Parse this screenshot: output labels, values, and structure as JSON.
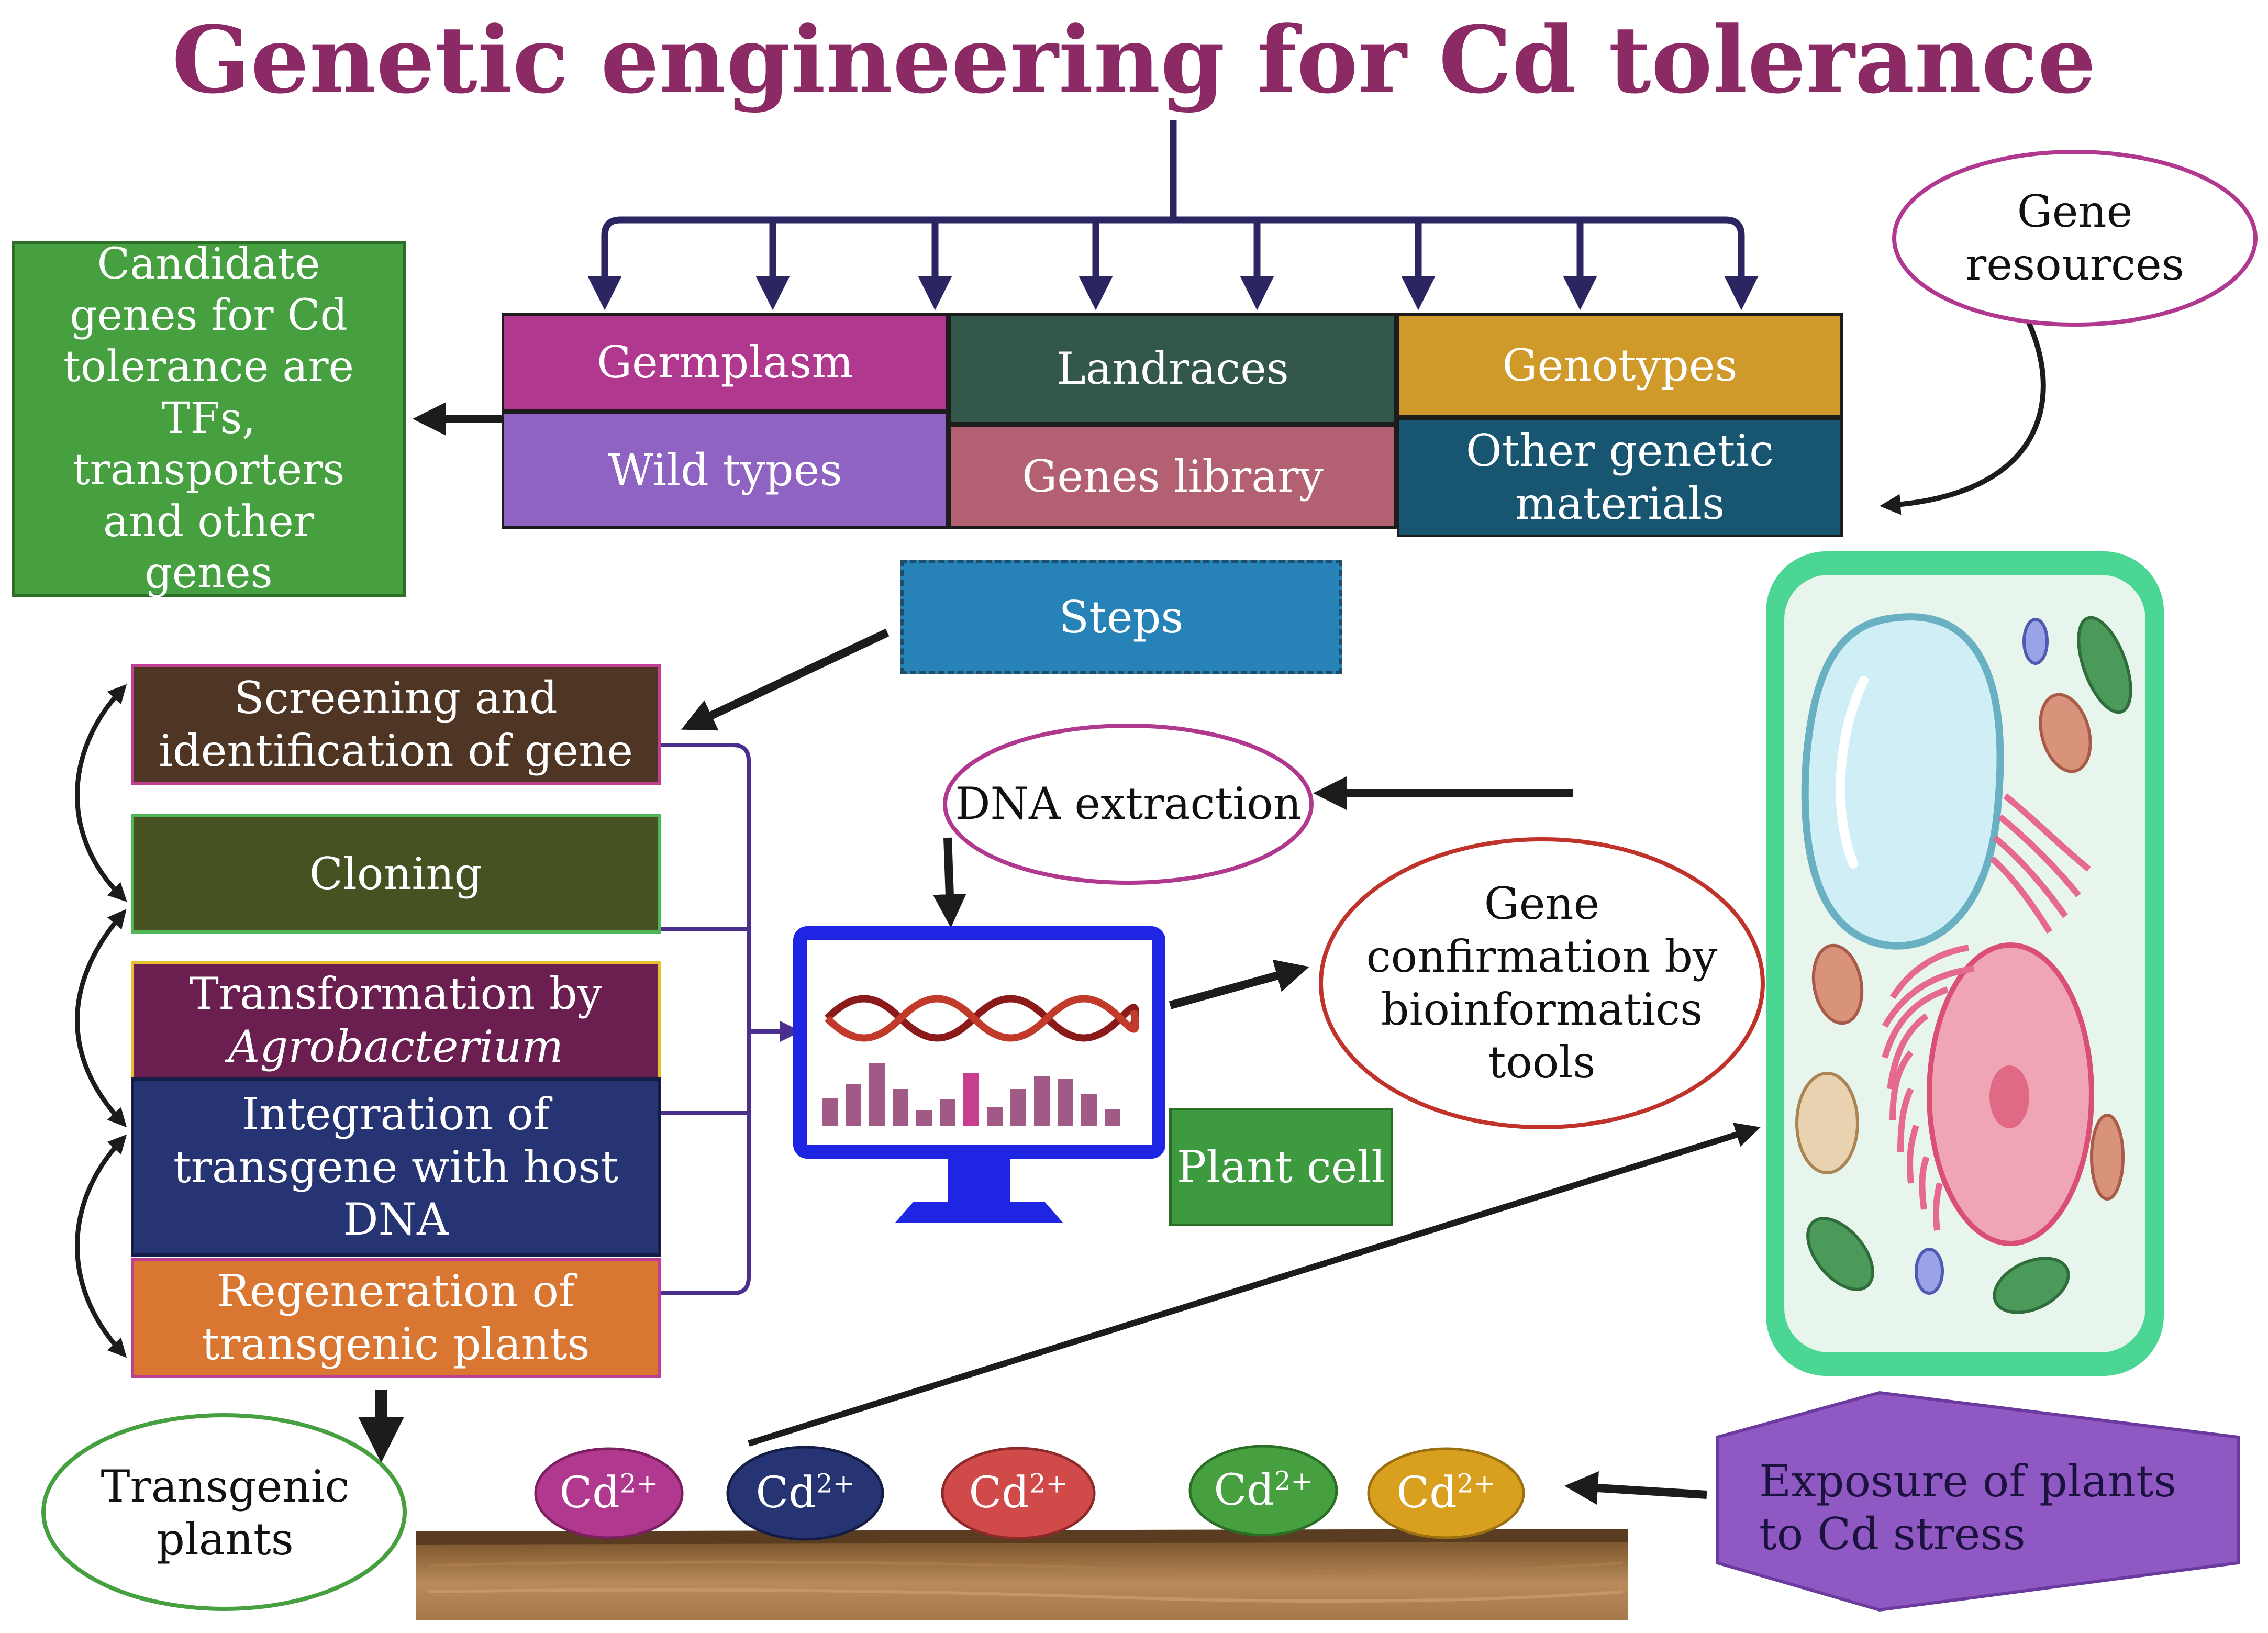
{
  "title": "Genetic engineering for Cd tolerance",
  "resources": {
    "germplasm": "Germplasm",
    "wild_types": "Wild types",
    "landraces": "Landraces",
    "genes_library": "Genes library",
    "genotypes": "Genotypes",
    "other_materials": "Other genetic materials",
    "gene_resources": "Gene resources"
  },
  "candidate_genes": "Candidate genes for Cd tolerance are TFs, transporters and other genes",
  "steps_label": "Steps",
  "steps": [
    "Screening and identification of gene",
    "Cloning",
    "Transformation by",
    "Integration of transgene with host DNA",
    "Regeneration of transgenic plants"
  ],
  "steps_italic": "Agrobacterium",
  "dna_extraction": "DNA extraction",
  "gene_confirmation": "Gene confirmation by bioinformatics tools",
  "plant_cell": "Plant cell",
  "transgenic_plants": "Transgenic plants",
  "exposure": "Exposure of plants to Cd stress",
  "cd_ion": {
    "base": "Cd",
    "charge": "2+"
  },
  "colors": {
    "title": "#8b2a64",
    "germplasm": "#b1388f",
    "wild_types": "#8f63c1",
    "landraces": "#34574b",
    "genes_library": "#b36172",
    "genotypes": "#cf9a29",
    "other_materials": "#175570",
    "candidate": "#46a040",
    "steps": "#2782b7",
    "screening": "#4e3524",
    "cloning": "#465222",
    "transformation": "#6a1f50",
    "integration": "#273473",
    "regeneration": "#d87632",
    "plant_cell": "#3e9a3e",
    "exposure": "#8f58c2"
  }
}
